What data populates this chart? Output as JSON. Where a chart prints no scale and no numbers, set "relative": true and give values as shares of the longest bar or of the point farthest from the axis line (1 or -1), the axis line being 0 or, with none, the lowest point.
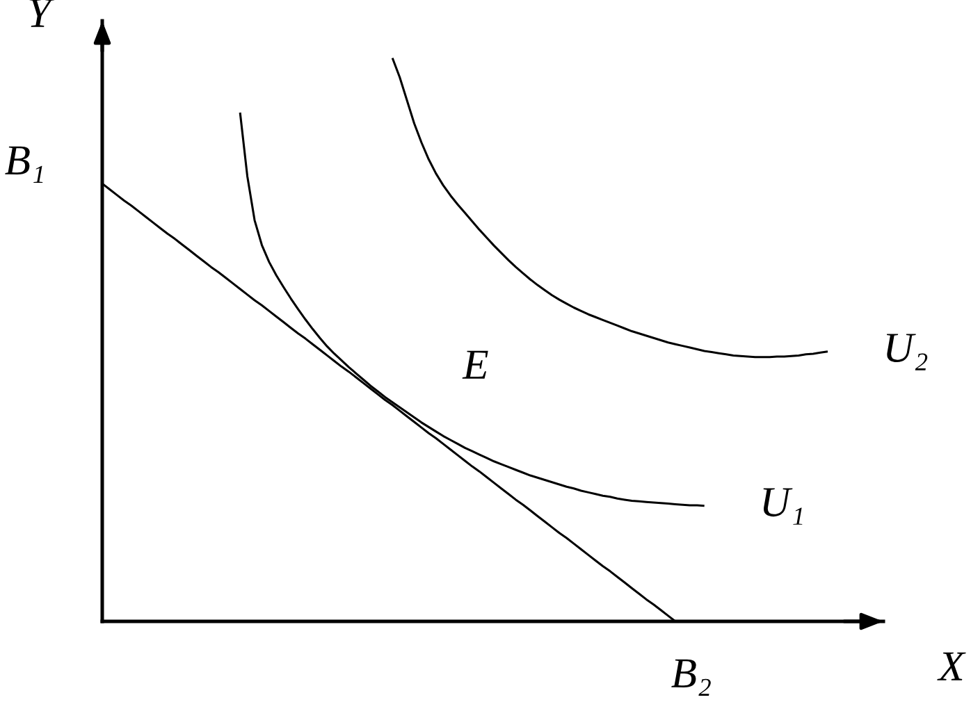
{
  "chart_data": {
    "type": "line",
    "relative": true,
    "xlabel": "X",
    "ylabel": "Y",
    "marker": "none",
    "line_style": "solid",
    "categories": [
      null,
      null,
      null,
      null,
      null,
      null,
      null,
      null,
      null,
      null,
      null,
      null,
      null,
      null,
      null,
      null,
      null,
      null,
      null,
      null,
      null,
      null,
      null,
      null,
      null,
      null,
      null,
      null,
      null,
      null,
      null,
      null,
      null,
      null,
      null,
      null,
      null,
      null,
      null,
      null,
      null,
      null,
      null,
      null,
      null,
      null,
      null,
      null,
      null,
      null,
      null,
      null,
      null,
      null,
      null,
      null,
      null,
      null,
      null,
      null,
      null,
      null,
      null,
      null,
      null,
      null,
      null,
      null,
      null,
      null,
      null,
      null,
      null,
      null,
      null,
      null,
      null,
      null,
      null,
      null,
      null,
      null,
      null,
      null,
      null,
      null,
      null,
      null,
      null,
      null,
      null,
      null,
      null,
      null,
      null,
      null,
      null,
      null,
      null,
      null,
      null
    ],
    "series": [
      {
        "name": "U₁",
        "color": "#000000",
        "values": [
          null,
          null,
          null,
          null,
          null,
          null,
          null,
          null,
          null,
          null,
          null,
          null,
          null,
          null,
          null,
          null,
          null,
          null,
          null,
          0.903,
          0.79,
          0.712,
          0.668,
          0.638,
          0.614,
          0.593,
          0.573,
          0.554,
          0.536,
          0.519,
          0.503,
          0.488,
          0.475,
          0.463,
          0.451,
          0.44,
          0.429,
          0.418,
          0.408,
          0.398,
          0.389,
          0.38,
          0.371,
          0.362,
          0.353,
          0.345,
          0.337,
          0.329,
          0.322,
          0.315,
          0.308,
          0.302,
          0.296,
          0.29,
          0.284,
          0.279,
          0.274,
          0.269,
          0.264,
          0.259,
          0.255,
          0.251,
          0.247,
          0.243,
          0.239,
          0.236,
          0.232,
          0.229,
          0.226,
          0.223,
          0.221,
          0.218,
          0.216,
          0.214,
          0.213,
          0.212,
          0.211,
          0.21,
          0.209,
          0.208,
          0.207,
          0.206,
          0.206,
          0.205,
          null,
          null,
          null,
          null,
          null,
          null,
          null,
          null,
          null,
          null,
          null,
          null,
          null,
          null,
          null,
          null,
          null
        ]
      },
      {
        "name": "U₂",
        "color": "#000000",
        "values": [
          null,
          null,
          null,
          null,
          null,
          null,
          null,
          null,
          null,
          null,
          null,
          null,
          null,
          null,
          null,
          null,
          null,
          null,
          null,
          null,
          null,
          null,
          null,
          null,
          null,
          null,
          null,
          null,
          null,
          null,
          null,
          null,
          null,
          null,
          null,
          null,
          null,
          null,
          null,
          null,
          1.0,
          0.966,
          0.925,
          0.884,
          0.85,
          0.82,
          0.795,
          0.774,
          0.756,
          0.74,
          0.725,
          0.71,
          0.695,
          0.681,
          0.667,
          0.654,
          0.641,
          0.629,
          0.618,
          0.607,
          0.597,
          0.588,
          0.579,
          0.571,
          0.564,
          0.557,
          0.551,
          0.545,
          0.54,
          0.535,
          0.53,
          0.525,
          0.52,
          0.515,
          0.511,
          0.507,
          0.503,
          0.499,
          0.495,
          0.492,
          0.489,
          0.486,
          0.483,
          0.48,
          0.478,
          0.476,
          0.474,
          0.472,
          0.471,
          0.47,
          0.469,
          0.469,
          0.469,
          0.47,
          0.47,
          0.471,
          0.472,
          0.474,
          0.475,
          0.477,
          0.479
        ]
      },
      {
        "color": "#000000",
        "values": [
          0.777,
          0.767,
          0.757,
          0.747,
          0.738,
          0.728,
          0.718,
          0.708,
          0.698,
          0.688,
          0.679,
          0.669,
          0.659,
          0.649,
          0.639,
          0.629,
          0.62,
          0.61,
          0.6,
          0.59,
          0.58,
          0.57,
          0.561,
          0.551,
          0.541,
          0.531,
          0.521,
          0.511,
          0.502,
          0.492,
          0.482,
          0.472,
          0.462,
          0.452,
          0.443,
          0.433,
          0.423,
          0.413,
          0.403,
          0.393,
          0.384,
          0.374,
          0.364,
          0.354,
          0.344,
          0.334,
          0.325,
          0.315,
          0.305,
          0.295,
          0.285,
          0.275,
          0.266,
          0.256,
          0.246,
          0.236,
          0.226,
          0.216,
          0.207,
          0.197,
          0.187,
          0.177,
          0.167,
          0.157,
          0.148,
          0.138,
          0.128,
          0.118,
          0.108,
          0.098,
          0.089,
          0.079,
          0.069,
          0.059,
          0.049,
          0.039,
          0.03,
          0.02,
          0.01,
          0,
          null,
          null,
          null,
          null,
          null,
          null,
          null,
          null,
          null,
          null,
          null,
          null,
          null,
          null,
          null,
          null,
          null,
          null,
          null,
          null,
          null
        ]
      }
    ],
    "annotations": [
      "B₁",
      "E",
      "B₂"
    ]
  }
}
